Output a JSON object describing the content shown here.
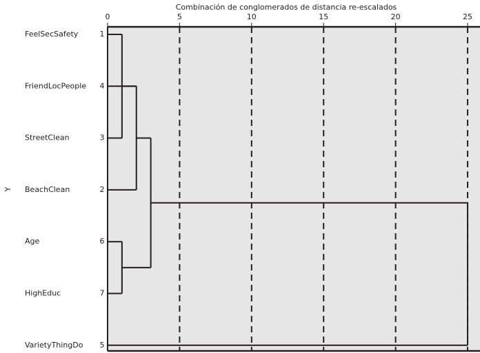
{
  "chart_data": {
    "type": "dendrogram",
    "x_label": "Combinación de conglomerados de distancia re-escalados",
    "y_label": "Y",
    "labels": [
      "FeelSecSafety",
      "FriendLocPeople",
      "StreetClean",
      "BeachClean",
      "Age",
      "HighEduc",
      "VarietyThingDo"
    ],
    "case_numbers": [
      1,
      4,
      3,
      2,
      6,
      7,
      5
    ],
    "merges": [
      {
        "children": [
          0,
          2
        ],
        "height": 1
      },
      {
        "children": [
          4,
          5
        ],
        "height": 1
      },
      {
        "children": [
          7,
          1,
          3
        ],
        "height": 2
      },
      {
        "children": [
          9,
          8
        ],
        "height": 3
      },
      {
        "children": [
          10,
          6
        ],
        "height": 25
      }
    ],
    "xlim": [
      0,
      25.86
    ],
    "xticks": [
      0,
      5,
      10,
      15,
      20,
      25
    ],
    "grid": true,
    "grid_style": "dashed",
    "background": "#e6e6e6",
    "color": "#231f20"
  }
}
